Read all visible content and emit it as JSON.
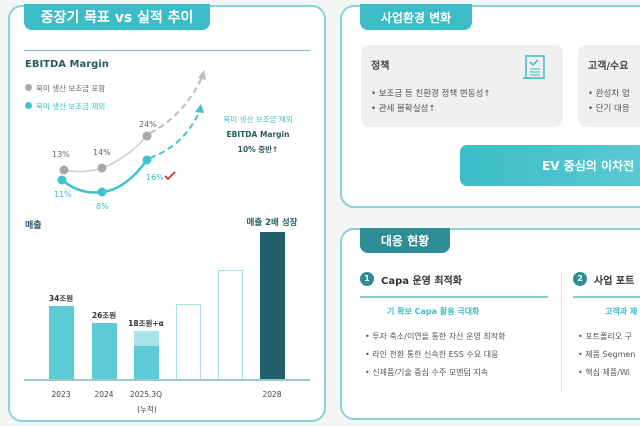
{
  "left": {
    "title": "중장기 목표 vs 실적 추이",
    "ebitda_title": "EBITDA Margin",
    "legend": [
      "북미 생산 보조금 포함",
      "북미 생산 보조금 제외"
    ],
    "annotation": [
      "북미 생산 보조금 제외",
      "EBITDA Margin",
      "10% 중반↑"
    ],
    "revenue_title": "매출",
    "revenue_note": "매출 2배 성장",
    "year_sub": "(누적)"
  },
  "chart_data": [
    {
      "type": "line",
      "title": "EBITDA Margin",
      "x": [
        "2023",
        "2024",
        "2025.3Q"
      ],
      "series": [
        {
          "name": "북미 생산 보조금 포함",
          "values": [
            13,
            14,
            24
          ],
          "labels": [
            "13%",
            "14%",
            "24%"
          ],
          "color": "#a8a8a8"
        },
        {
          "name": "북미 생산 보조금 제외",
          "values": [
            11,
            8,
            16
          ],
          "labels": [
            "11%",
            "8%",
            "16%"
          ],
          "color": "#3fc3cf"
        }
      ],
      "projection": "dashed-upward"
    },
    {
      "type": "bar",
      "title": "매출",
      "categories": [
        "2023",
        "2024",
        "2025.3Q",
        "",
        "",
        "2028"
      ],
      "labels": [
        "34조원",
        "26조원",
        "18조원+α",
        "",
        "",
        ""
      ],
      "values": [
        34,
        26,
        18,
        null,
        null,
        null
      ],
      "styles": [
        "solid",
        "solid",
        "solid+hatched",
        "outline",
        "outline",
        "dark"
      ]
    }
  ],
  "right_top": {
    "title": "사업환경 변화",
    "cards": [
      {
        "title": "정책",
        "icon": "document-check-icon",
        "bullets": [
          "보조금 등 친환경 정책 변동성↑",
          "관세 불확실성↑"
        ]
      },
      {
        "title": "고객/수요",
        "bullets": [
          "완성차 업",
          "단기 대응"
        ]
      }
    ],
    "banner": "EV 중심의 이차전"
  },
  "right_bottom": {
    "title": "대응 현황",
    "sections": [
      {
        "num": "1",
        "title": "Capa 운영 최적화",
        "subtitle": "기 확보 Capa 활용 극대화",
        "bullets": [
          "투자 축소/이연을 통한 자산 운영 최적화",
          "라인 전환 통한 신속한 ESS 수요 대응",
          "신제품/기술 중심 수주 모멘텀 지속"
        ]
      },
      {
        "num": "2",
        "title": "사업 포트",
        "subtitle": "고객과 제",
        "bullets": [
          "포트폴리오 구",
          "제품 Segmen",
          "핵심 제품/Wi"
        ]
      }
    ]
  },
  "colors": {
    "teal": "#3bbcc6",
    "dark_teal": "#22606a",
    "gray": "#a8a8a8",
    "border": "#86d3d8"
  }
}
